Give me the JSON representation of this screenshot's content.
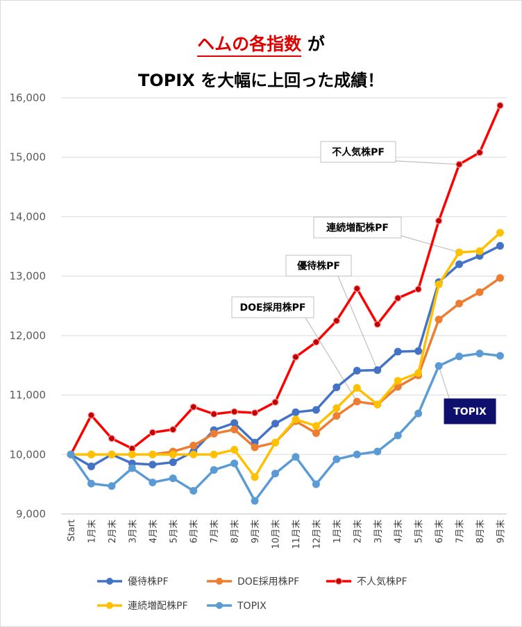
{
  "title": {
    "line1_accent": "ヘムの各指数",
    "line1_rest": "が",
    "line2": "TOPIX を大幅に上回った成績！"
  },
  "chart_data": {
    "type": "line",
    "categories": [
      "Start",
      "1月末",
      "2月末",
      "3月末",
      "4月末",
      "5月末",
      "6月末",
      "7月末",
      "8月末",
      "9月末",
      "10月末",
      "11月末",
      "12月末",
      "1月末",
      "2月末",
      "3月末",
      "4月末",
      "5月末",
      "6月末",
      "7月末",
      "8月末",
      "9月末"
    ],
    "ylim": [
      9000,
      16000
    ],
    "yticks": [
      9000,
      10000,
      11000,
      12000,
      13000,
      14000,
      15000,
      16000
    ],
    "ytick_labels": [
      "9,000",
      "10,000",
      "11,000",
      "12,000",
      "13,000",
      "14,000",
      "15,000",
      "16,000"
    ],
    "grid": "horizontal",
    "legend_position": "bottom",
    "series": [
      {
        "name": "優待株PF",
        "color": "#4472c4",
        "marker": "circle",
        "values": [
          10000,
          9800,
          10000,
          9850,
          9830,
          9870,
          10050,
          10410,
          10530,
          10200,
          10520,
          10710,
          10750,
          11130,
          11410,
          11420,
          11730,
          11740,
          12900,
          13200,
          13340,
          13510
        ]
      },
      {
        "name": "DOE採用株PF",
        "color": "#ed7d31",
        "marker": "circle",
        "values": [
          10000,
          10000,
          10000,
          10000,
          10000,
          10050,
          10150,
          10350,
          10420,
          10120,
          10200,
          10560,
          10360,
          10650,
          10890,
          10840,
          11140,
          11330,
          12270,
          12540,
          12730,
          12970
        ]
      },
      {
        "name": "不人気株PF",
        "color": "#ff0000",
        "marker": "circle-red",
        "values": [
          10000,
          10660,
          10270,
          10100,
          10370,
          10420,
          10800,
          10680,
          10720,
          10700,
          10880,
          11640,
          11890,
          12250,
          12790,
          12190,
          12630,
          12780,
          13930,
          14880,
          15080,
          15870
        ]
      },
      {
        "name": "連続増配株PF",
        "color": "#ffc000",
        "marker": "circle",
        "values": [
          10000,
          10000,
          10000,
          10000,
          10000,
          10000,
          10000,
          10000,
          10080,
          9620,
          10200,
          10590,
          10480,
          10780,
          11120,
          10840,
          11240,
          11370,
          12860,
          13400,
          13420,
          13730
        ]
      },
      {
        "name": "TOPIX",
        "color": "#5b9bd5",
        "marker": "circle",
        "values": [
          10000,
          9510,
          9470,
          9770,
          9530,
          9600,
          9390,
          9740,
          9850,
          9220,
          9680,
          9960,
          9500,
          9920,
          10000,
          10050,
          10320,
          10690,
          11490,
          11650,
          11700,
          11660
        ]
      }
    ],
    "annotations": [
      {
        "text": "不人気株PF",
        "series": 2,
        "point": 19
      },
      {
        "text": "連続増配株PF",
        "series": 3,
        "point": 19
      },
      {
        "text": "優待株PF",
        "series": 0,
        "point": 15
      },
      {
        "text": "DOE採用株PF",
        "series": 1,
        "point": 14
      },
      {
        "text": "TOPIX",
        "series": 4,
        "point": 18
      }
    ]
  }
}
